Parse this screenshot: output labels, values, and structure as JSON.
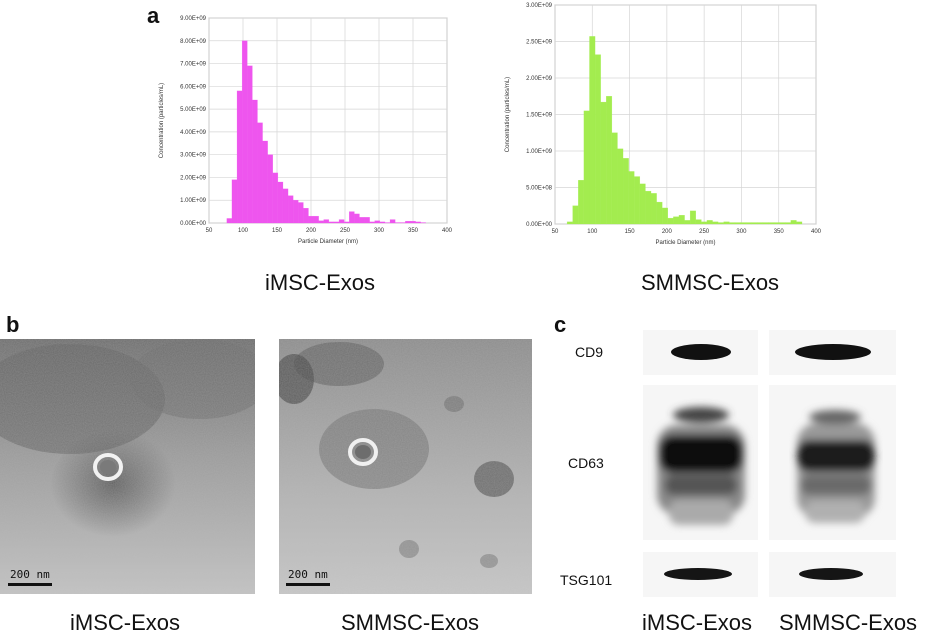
{
  "panels": {
    "a": "a",
    "b": "b",
    "c": "c"
  },
  "captions": {
    "chart_left": "iMSC-Exos",
    "chart_right": "SMMSC-Exos",
    "em_left": "iMSC-Exos",
    "em_right": "SMMSC-Exos",
    "wb_left": "iMSC-Exos",
    "wb_right": "SMMSC-Exos"
  },
  "scalebars": {
    "left": "200 nm",
    "right": "200 nm"
  },
  "western_blot": {
    "markers": [
      "CD9",
      "CD63",
      "TSG101"
    ]
  },
  "colors": {
    "imsc_bar": "#ee55ee",
    "smmsc_bar": "#a3ec4f"
  },
  "chart_data": [
    {
      "type": "bar",
      "title": "",
      "xlabel": "Particle Diameter (nm)",
      "ylabel": "Concentration (particles/mL)",
      "xlim": [
        50,
        400
      ],
      "ylim": [
        0,
        9000000000.0
      ],
      "x_ticks": [
        "50",
        "100",
        "150",
        "200",
        "250",
        "300",
        "350",
        "400"
      ],
      "y_ticks": [
        "0.00E+00",
        "1.00E+09",
        "2.00E+09",
        "3.00E+09",
        "4.00E+09",
        "5.00E+09",
        "6.00E+09",
        "7.00E+09",
        "8.00E+09",
        "9.00E+09"
      ],
      "bin_width": 7.5,
      "x": [
        80,
        87.5,
        95,
        102.5,
        110,
        117.5,
        125,
        132.5,
        140,
        147.5,
        155,
        162.5,
        170,
        177.5,
        185,
        192.5,
        200,
        207.5,
        215,
        222.5,
        230,
        237.5,
        245,
        252.5,
        260,
        267.5,
        275,
        282.5,
        290,
        297.5,
        305,
        312.5,
        320,
        327.5,
        335,
        342.5,
        350,
        357.5,
        365
      ],
      "values": [
        200000000.0,
        1900000000.0,
        5800000000.0,
        8000000000.0,
        6900000000.0,
        5400000000.0,
        4400000000.0,
        3600000000.0,
        3000000000.0,
        2200000000.0,
        1800000000.0,
        1500000000.0,
        1200000000.0,
        1000000000.0,
        900000000.0,
        650000000.0,
        300000000.0,
        300000000.0,
        100000000.0,
        150000000.0,
        50000000.0,
        50000000.0,
        150000000.0,
        50000000.0,
        500000000.0,
        400000000.0,
        250000000.0,
        250000000.0,
        50000000.0,
        100000000.0,
        50000000.0,
        20000000.0,
        150000000.0,
        20000000.0,
        20000000.0,
        80000000.0,
        80000000.0,
        50000000.0,
        20000000.0
      ],
      "grid": true
    },
    {
      "type": "bar",
      "title": "",
      "xlabel": "Particle Diameter (nm)",
      "ylabel": "Concentration (particles/mL)",
      "xlim": [
        50,
        400
      ],
      "ylim": [
        0,
        3000000000.0
      ],
      "x_ticks": [
        "50",
        "100",
        "150",
        "200",
        "250",
        "300",
        "350",
        "400"
      ],
      "y_ticks": [
        "0.00E+00",
        "5.00E+08",
        "1.00E+09",
        "1.50E+09",
        "2.00E+09",
        "2.50E+09",
        "3.00E+09"
      ],
      "bin_width": 7.5,
      "x": [
        70,
        77.5,
        85,
        92.5,
        100,
        107.5,
        115,
        122.5,
        130,
        137.5,
        145,
        152.5,
        160,
        167.5,
        175,
        182.5,
        190,
        197.5,
        205,
        212.5,
        220,
        227.5,
        235,
        242.5,
        250,
        257.5,
        265,
        272.5,
        280,
        287.5,
        295,
        302.5,
        310,
        317.5,
        325,
        332.5,
        340,
        347.5,
        355,
        362.5,
        370,
        377.5
      ],
      "values": [
        30000000.0,
        250000000.0,
        600000000.0,
        1550000000.0,
        2570000000.0,
        2320000000.0,
        1670000000.0,
        1750000000.0,
        1250000000.0,
        1030000000.0,
        900000000.0,
        720000000.0,
        650000000.0,
        550000000.0,
        450000000.0,
        420000000.0,
        300000000.0,
        220000000.0,
        80000000.0,
        100000000.0,
        120000000.0,
        50000000.0,
        180000000.0,
        60000000.0,
        30000000.0,
        50000000.0,
        30000000.0,
        20000000.0,
        30000000.0,
        20000000.0,
        20000000.0,
        20000000.0,
        20000000.0,
        20000000.0,
        20000000.0,
        20000000.0,
        20000000.0,
        20000000.0,
        20000000.0,
        20000000.0,
        50000000.0,
        30000000.0
      ],
      "grid": true
    }
  ]
}
